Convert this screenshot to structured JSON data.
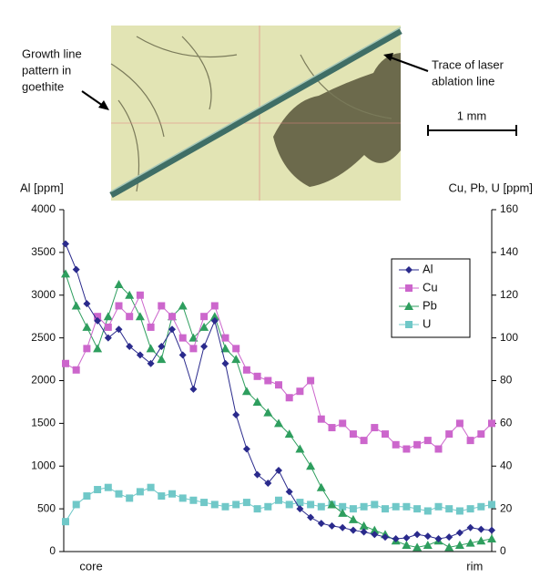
{
  "chart_data": {
    "type": "line",
    "photo_annotations": {
      "growth": [
        "Growth line",
        "pattern in",
        "goethite"
      ],
      "trace": [
        "Trace of laser",
        "ablation line"
      ],
      "scale": "1 mm"
    },
    "ylabel": "Al [ppm]",
    "y2label": "Cu, Pb, U [ppm]",
    "x": [
      0,
      2.5,
      5,
      7.5,
      10,
      12.5,
      15,
      17.5,
      20,
      22.5,
      25,
      27.5,
      30,
      32.5,
      35,
      37.5,
      40,
      42.5,
      45,
      47.5,
      50,
      52.5,
      55,
      57.5,
      60,
      62.5,
      65,
      67.5,
      70,
      72.5,
      75,
      77.5,
      80,
      82.5,
      85,
      87.5,
      90,
      92.5,
      95,
      97.5,
      100
    ],
    "xlim": [
      0,
      100
    ],
    "xticks": [
      {
        "value": 6,
        "label": "core"
      },
      {
        "value": 96,
        "label": "rim"
      }
    ],
    "ylim": [
      0,
      4000
    ],
    "yticks": [
      0,
      500,
      1000,
      1500,
      2000,
      2500,
      3000,
      3500,
      4000
    ],
    "y2lim": [
      0,
      160
    ],
    "y2ticks": [
      0,
      20,
      40,
      60,
      80,
      100,
      120,
      140,
      160
    ],
    "legend": "upper-right",
    "series": [
      {
        "name": "Al",
        "color": "#2a2a8c",
        "marker": "diamond",
        "axis": "y",
        "values": [
          3600,
          3300,
          2900,
          2700,
          2500,
          2600,
          2400,
          2300,
          2200,
          2400,
          2600,
          2300,
          1900,
          2400,
          2700,
          2200,
          1600,
          1200,
          900,
          800,
          950,
          700,
          500,
          400,
          330,
          300,
          280,
          250,
          230,
          200,
          170,
          150,
          160,
          200,
          180,
          150,
          170,
          220,
          280,
          260,
          250
        ]
      },
      {
        "name": "Cu",
        "color": "#cc66cc",
        "marker": "square",
        "axis": "y2",
        "values": [
          88,
          85,
          95,
          110,
          105,
          115,
          110,
          120,
          105,
          115,
          110,
          100,
          95,
          110,
          115,
          100,
          95,
          85,
          82,
          80,
          78,
          72,
          75,
          80,
          62,
          58,
          60,
          55,
          52,
          58,
          55,
          50,
          48,
          50,
          52,
          48,
          55,
          60,
          52,
          55,
          60
        ]
      },
      {
        "name": "Pb",
        "color": "#2e9e5e",
        "marker": "triangle",
        "axis": "y2",
        "values": [
          130,
          115,
          105,
          95,
          110,
          125,
          120,
          110,
          95,
          90,
          110,
          115,
          100,
          105,
          110,
          95,
          90,
          75,
          70,
          65,
          60,
          55,
          48,
          40,
          30,
          22,
          18,
          15,
          12,
          10,
          8,
          5,
          3,
          2,
          3,
          5,
          2,
          3,
          4,
          5,
          6
        ]
      },
      {
        "name": "U",
        "color": "#70c8c8",
        "marker": "square",
        "axis": "y2",
        "values": [
          14,
          22,
          26,
          29,
          30,
          27,
          25,
          28,
          30,
          26,
          27,
          25,
          24,
          23,
          22,
          21,
          22,
          23,
          20,
          21,
          24,
          22,
          23,
          22,
          21,
          22,
          21,
          20,
          21,
          22,
          20,
          21,
          21,
          20,
          19,
          21,
          20,
          19,
          20,
          21,
          22
        ]
      }
    ]
  }
}
